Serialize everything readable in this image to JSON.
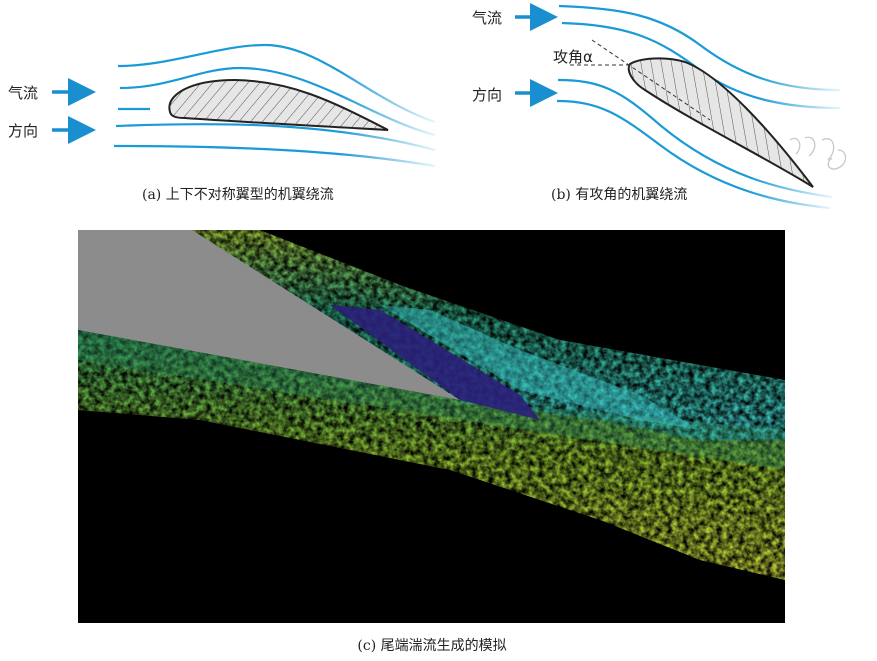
{
  "panel_a": {
    "label_airflow": "气流",
    "label_direction": "方向",
    "caption": "(a) 上下不对称翼型的机翼绕流"
  },
  "panel_b": {
    "label_airflow": "气流",
    "label_direction": "方向",
    "angle_label": "攻角α",
    "caption": "(b) 有攻角的机翼绕流"
  },
  "panel_c": {
    "caption": "(c) 尾端湍流生成的模拟"
  },
  "colors": {
    "streamline": "#1a9ad6",
    "arrow": "#1a8fcf",
    "airfoil_fill": "#e6e6e6",
    "sim_background": "#000000",
    "sim_airfoil": "#8c8c8c"
  }
}
